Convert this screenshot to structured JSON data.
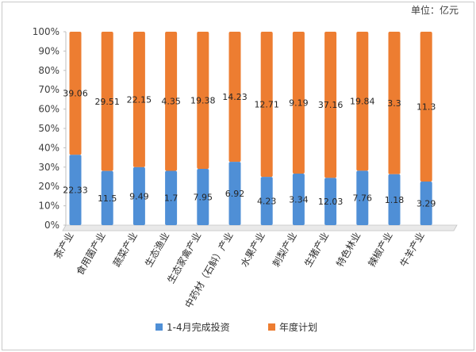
{
  "chart_data": {
    "type": "bar",
    "stacked": "percent",
    "unit": "单位：亿元",
    "categories": [
      "茶产业",
      "食用菌产业",
      "蔬菜产业",
      "生态渔业",
      "生态家禽产业",
      "中药材（石斛）产业",
      "水果产业",
      "刺梨产业",
      "生猪产业",
      "特色林业",
      "辣椒产业",
      "牛羊产业"
    ],
    "series": [
      {
        "name": "1-4月完成投资",
        "color": "#4f8fd6",
        "values": [
          22.33,
          11.5,
          9.49,
          1.7,
          7.95,
          6.92,
          4.23,
          3.34,
          12.03,
          7.76,
          1.18,
          3.29
        ]
      },
      {
        "name": "年度计划",
        "color": "#ed7d31",
        "values": [
          39.06,
          29.51,
          22.15,
          4.35,
          19.38,
          14.23,
          12.71,
          9.19,
          37.16,
          19.84,
          3.3,
          11.3
        ]
      }
    ],
    "y_ticks": [
      "0%",
      "10%",
      "20%",
      "30%",
      "40%",
      "50%",
      "60%",
      "70%",
      "80%",
      "90%",
      "100%"
    ],
    "ylim": [
      0,
      100
    ],
    "grid": false,
    "legend_position": "bottom"
  }
}
